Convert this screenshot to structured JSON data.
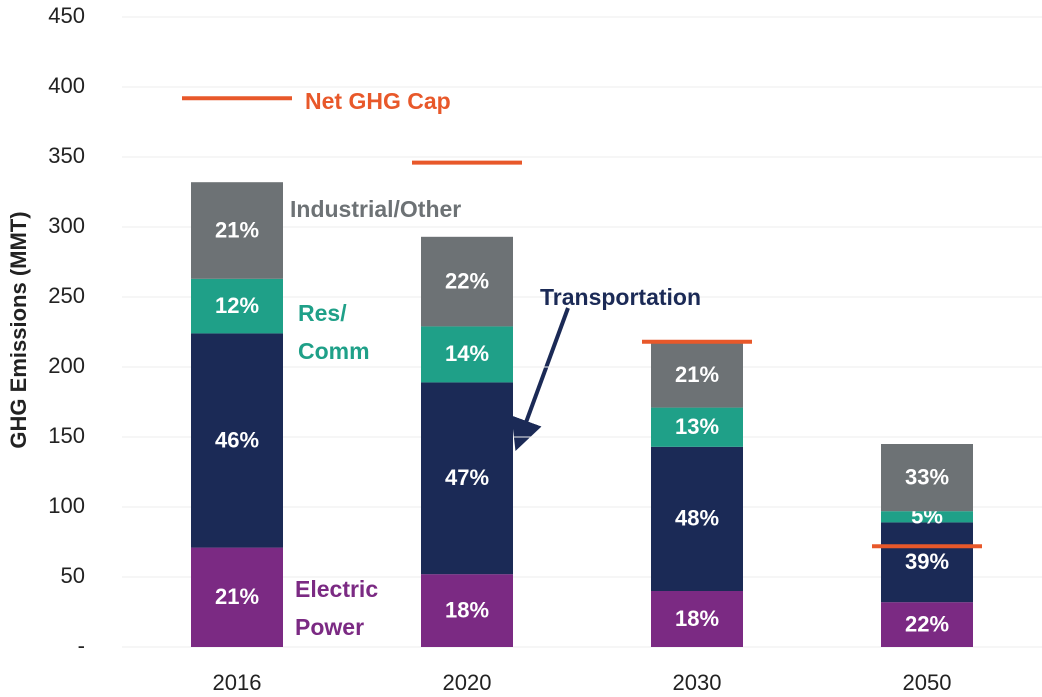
{
  "chart_data": {
    "type": "stacked_bar",
    "y_label": "GHG Emissions (MMT)",
    "categories": [
      "2016",
      "2020",
      "2030",
      "2050"
    ],
    "series": [
      {
        "name": "Electric Power",
        "color": "#7b2a83",
        "values": [
          71,
          52,
          40,
          32
        ],
        "share_labels": [
          "21%",
          "18%",
          "18%",
          "22%"
        ]
      },
      {
        "name": "Transportation",
        "color": "#1b2a56",
        "values": [
          153,
          137,
          103,
          57
        ],
        "share_labels": [
          "46%",
          "47%",
          "48%",
          "39%"
        ]
      },
      {
        "name": "Res/ Comm",
        "color": "#1fa088",
        "values": [
          39,
          40,
          28,
          8
        ],
        "share_labels": [
          "12%",
          "14%",
          "13%",
          "5%"
        ]
      },
      {
        "name": "Industrial/Other",
        "color": "#6d7275",
        "values": [
          69,
          64,
          46,
          48
        ],
        "share_labels": [
          "21%",
          "22%",
          "21%",
          "33%"
        ]
      }
    ],
    "cap": {
      "name": "Net GHG Cap",
      "color": "#e8582a",
      "values": [
        392,
        346,
        218,
        72
      ]
    },
    "ylim": [
      0,
      450
    ],
    "yticks": [
      {
        "value": 0,
        "label": "-"
      },
      50,
      100,
      150,
      200,
      250,
      300,
      350,
      400,
      450
    ],
    "grid": true
  }
}
